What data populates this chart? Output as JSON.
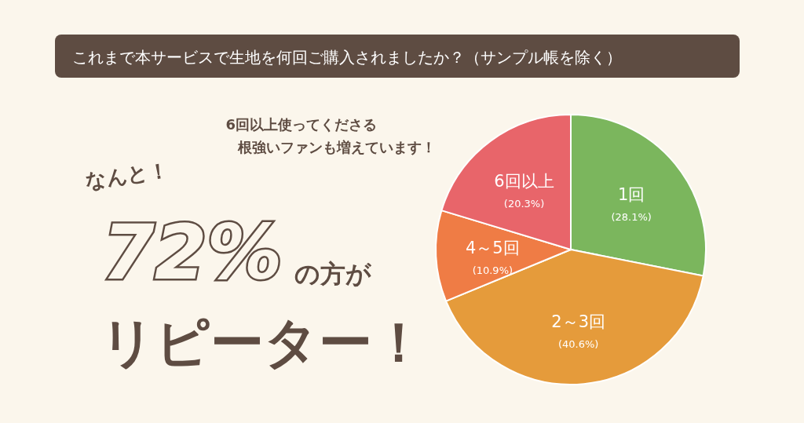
{
  "chart_data": {
    "type": "pie",
    "title": "これまで本サービスで生地を何回ご購入されましたか？（サンプル帳を除く）",
    "categories": [
      "1回",
      "2～3回",
      "4～5回",
      "6回以上"
    ],
    "values": [
      28.1,
      40.6,
      10.9,
      20.3
    ],
    "colors": [
      "#7bb65d",
      "#e59b3b",
      "#ef7c45",
      "#e8656a"
    ],
    "value_labels": [
      "(28.1%)",
      "(40.6%)",
      "(10.9%)",
      "(20.3%)"
    ],
    "annotations": [
      "なんと！",
      "72%",
      "の方が",
      "リピーター！",
      "6回以上使ってくださる",
      "根強いファンも増えています！"
    ]
  }
}
